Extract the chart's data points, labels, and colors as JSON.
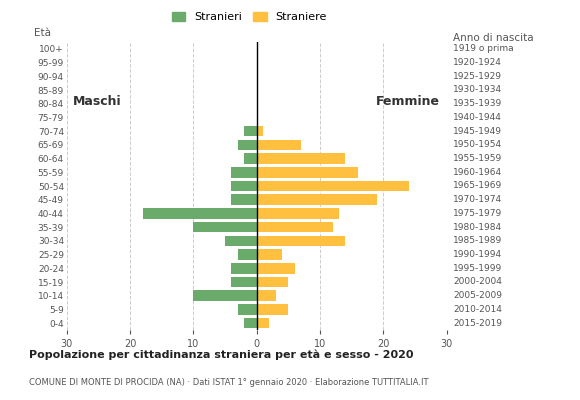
{
  "age_groups": [
    "0-4",
    "5-9",
    "10-14",
    "15-19",
    "20-24",
    "25-29",
    "30-34",
    "35-39",
    "40-44",
    "45-49",
    "50-54",
    "55-59",
    "60-64",
    "65-69",
    "70-74",
    "75-79",
    "80-84",
    "85-89",
    "90-94",
    "95-99",
    "100+"
  ],
  "birth_years": [
    "2015-2019",
    "2010-2014",
    "2005-2009",
    "2000-2004",
    "1995-1999",
    "1990-1994",
    "1985-1989",
    "1980-1984",
    "1975-1979",
    "1970-1974",
    "1965-1969",
    "1960-1964",
    "1955-1959",
    "1950-1954",
    "1945-1949",
    "1940-1944",
    "1935-1939",
    "1930-1934",
    "1925-1929",
    "1920-1924",
    "1919 o prima"
  ],
  "males": [
    2,
    3,
    10,
    4,
    4,
    3,
    5,
    10,
    18,
    4,
    4,
    4,
    2,
    3,
    2,
    0,
    0,
    0,
    0,
    0,
    0
  ],
  "females": [
    2,
    5,
    3,
    5,
    6,
    4,
    14,
    12,
    13,
    19,
    24,
    16,
    14,
    7,
    1,
    0,
    0,
    0,
    0,
    0,
    0
  ],
  "male_color": "#6aaa6a",
  "female_color": "#ffbf3f",
  "title": "Popolazione per cittadinanza straniera per età e sesso - 2020",
  "subtitle": "COMUNE DI MONTE DI PROCIDA (NA) · Dati ISTAT 1° gennaio 2020 · Elaborazione TUTTITALIA.IT",
  "label_eta": "Età",
  "label_anno": "Anno di nascita",
  "label_maschi": "Maschi",
  "label_femmine": "Femmine",
  "legend_stranieri": "Stranieri",
  "legend_straniere": "Straniere",
  "xlim": 30,
  "background_color": "#ffffff",
  "grid_color": "#cccccc"
}
